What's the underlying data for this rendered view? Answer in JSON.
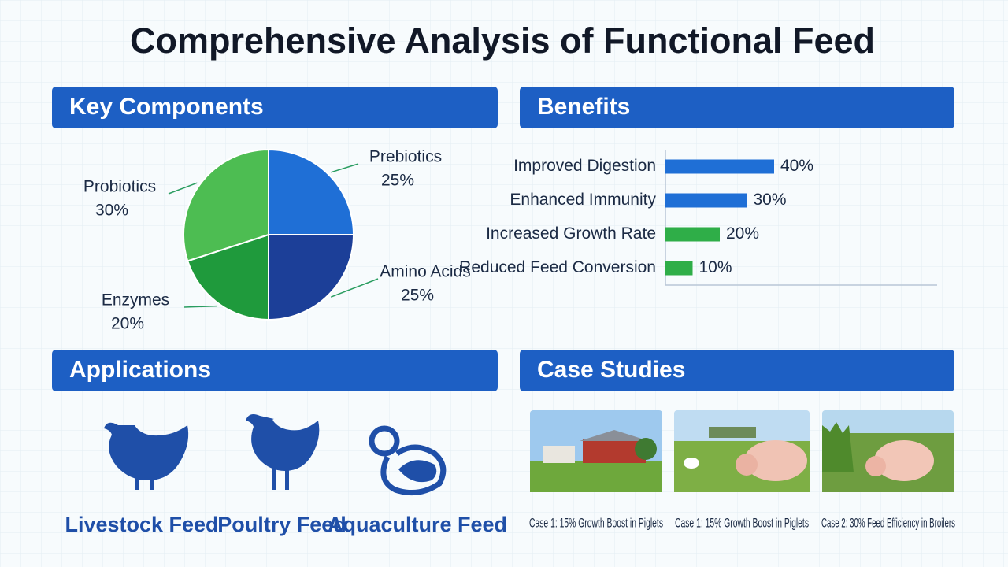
{
  "title": "Comprehensive Analysis of Functional Feed",
  "panels": {
    "components": {
      "heading": "Key Components"
    },
    "benefits": {
      "heading": "Benefits"
    },
    "applications": {
      "heading": "Applications",
      "items": [
        "Livestock Feed",
        "Poultry Feed",
        "Aquaculture Feed"
      ]
    },
    "cases": {
      "heading": "Case Studies",
      "items": [
        "Case 1: 15% Growth Boost in Piglets",
        "Case 1: 15% Growth Boost in Piglets",
        "Case 2: 30% Feed Efficiency in Broilers"
      ]
    }
  },
  "chart_data": [
    {
      "type": "pie",
      "categories": [
        "Prebiotics",
        "Amino Acids",
        "Enzymes",
        "Probiotics"
      ],
      "values": [
        25,
        25,
        20,
        30
      ],
      "value_labels": [
        "25%",
        "25%",
        "20%",
        "30%"
      ],
      "colors": [
        "#1f6fd6",
        "#1c3f98",
        "#1f9a3c",
        "#4dbd52"
      ]
    },
    {
      "type": "hbar",
      "categories": [
        "Improved Digestion",
        "Enhanced Immunity",
        "Increased Growth Rate",
        "Reduced Feed Conversion"
      ],
      "values": [
        40,
        30,
        20,
        10
      ],
      "value_labels": [
        "40%",
        "30%",
        "20%",
        "10%"
      ],
      "colors": [
        "#1f6fd6",
        "#1f6fd6",
        "#2fae48",
        "#2fae48"
      ],
      "xlim": [
        0,
        100
      ]
    }
  ]
}
